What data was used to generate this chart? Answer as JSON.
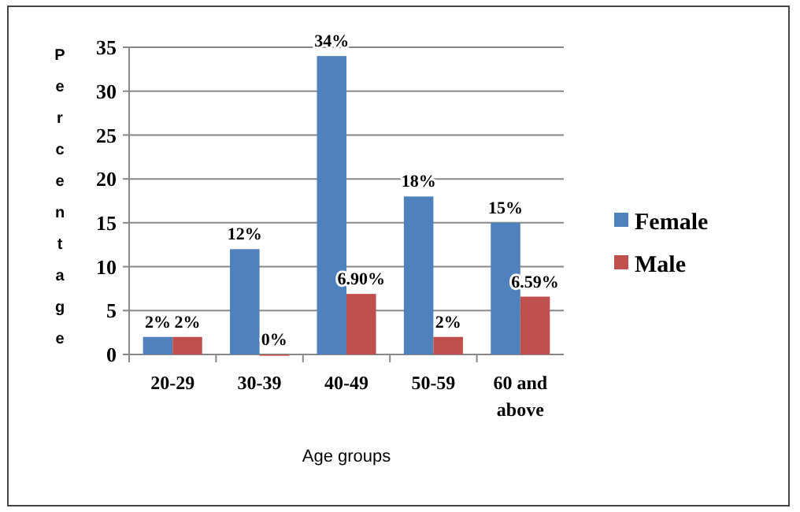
{
  "chart_data": {
    "type": "bar",
    "xlabel": "Age groups",
    "ylabel": "Percentage",
    "categories": [
      "20-29",
      "30-39",
      "40-49",
      "50-59",
      "60 and above"
    ],
    "series": [
      {
        "name": "Female",
        "color": "#4f81bd",
        "values": [
          2,
          12,
          34,
          18,
          15
        ],
        "value_labels": [
          "2%",
          "12%",
          "34%",
          "18%",
          "15%"
        ]
      },
      {
        "name": "Male",
        "color": "#c0504d",
        "values": [
          2,
          0,
          6.9,
          2,
          6.59
        ],
        "value_labels": [
          "2%",
          "0%",
          "6.90%",
          "2%",
          "6.59%"
        ]
      }
    ],
    "ylim": [
      0,
      35
    ],
    "yticks": [
      0,
      5,
      10,
      15,
      20,
      25,
      30,
      35
    ],
    "grid": "y",
    "legend": "right"
  }
}
